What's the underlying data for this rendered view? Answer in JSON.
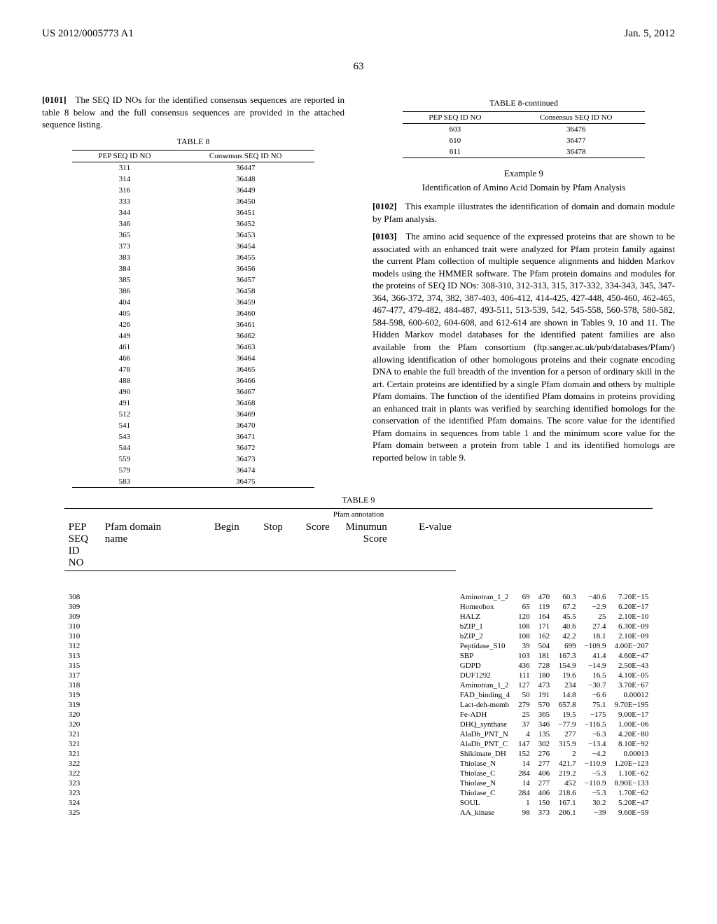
{
  "header": {
    "left": "US 2012/0005773 A1",
    "right": "Jan. 5, 2012"
  },
  "page_number": "63",
  "left_col": {
    "para_0101": {
      "label": "[0101]",
      "text": "The SEQ ID NOs for the identified consensus sequences are reported in table 8 below and the full consensus sequences are provided in the attached sequence listing."
    },
    "table8": {
      "caption": "TABLE 8",
      "headers": [
        "PEP SEQ ID NO",
        "Consensus SEQ ID NO"
      ],
      "rows": [
        [
          "311",
          "36447"
        ],
        [
          "314",
          "36448"
        ],
        [
          "316",
          "36449"
        ],
        [
          "333",
          "36450"
        ],
        [
          "344",
          "36451"
        ],
        [
          "346",
          "36452"
        ],
        [
          "365",
          "36453"
        ],
        [
          "373",
          "36454"
        ],
        [
          "383",
          "36455"
        ],
        [
          "384",
          "36456"
        ],
        [
          "385",
          "36457"
        ],
        [
          "386",
          "36458"
        ],
        [
          "404",
          "36459"
        ],
        [
          "405",
          "36460"
        ],
        [
          "426",
          "36461"
        ],
        [
          "449",
          "36462"
        ],
        [
          "461",
          "36463"
        ],
        [
          "466",
          "36464"
        ],
        [
          "478",
          "36465"
        ],
        [
          "488",
          "36466"
        ],
        [
          "490",
          "36467"
        ],
        [
          "491",
          "36468"
        ],
        [
          "512",
          "36469"
        ],
        [
          "541",
          "36470"
        ],
        [
          "543",
          "36471"
        ],
        [
          "544",
          "36472"
        ],
        [
          "559",
          "36473"
        ],
        [
          "579",
          "36474"
        ],
        [
          "583",
          "36475"
        ]
      ]
    }
  },
  "right_col": {
    "table8cont": {
      "caption": "TABLE 8-continued",
      "headers": [
        "PEP SEQ ID NO",
        "Consensus SEQ ID NO"
      ],
      "rows": [
        [
          "603",
          "36476"
        ],
        [
          "610",
          "36477"
        ],
        [
          "611",
          "36478"
        ]
      ]
    },
    "example9": {
      "heading": "Example 9",
      "sub": "Identification of Amino Acid Domain by Pfam Analysis"
    },
    "para_0102": {
      "label": "[0102]",
      "text": "This example illustrates the identification of domain and domain module by Pfam analysis."
    },
    "para_0103": {
      "label": "[0103]",
      "text": "The amino acid sequence of the expressed proteins that are shown to be associated with an enhanced trait were analyzed for Pfam protein family against the current Pfam collection of multiple sequence alignments and hidden Markov models using the HMMER software. The Pfam protein domains and modules for the proteins of SEQ ID NOs: 308-310, 312-313, 315, 317-332, 334-343, 345, 347-364, 366-372, 374, 382, 387-403, 406-412, 414-425, 427-448, 450-460, 462-465, 467-477, 479-482, 484-487, 493-511, 513-539, 542, 545-558, 560-578, 580-582, 584-598, 600-602, 604-608, and 612-614 are shown in Tables 9, 10 and 11. The Hidden Markov model databases for the identified patent families are also available from the Pfam consortium (ftp.sanger.ac.uk/pub/databases/Pfam/) allowing identification of other homologous proteins and their cognate encoding DNA to enable the full breadth of the invention for a person of ordinary skill in the art. Certain proteins are identified by a single Pfam domain and others by multiple Pfam domains. The function of the identified Pfam domains in proteins providing an enhanced trait in plants was verified by searching identified homologs for the conservation of the identified Pfam domains. The score value for the identified Pfam domains in sequences from table 1 and the minimum score value for the Pfam domain between a protein from table 1 and its identified homologs are reported below in table 9."
    }
  },
  "table9": {
    "caption": "TABLE 9",
    "section_label": "Pfam annotation",
    "headers": [
      "PEP SEQ ID NO",
      "Pfam domain name",
      "Begin",
      "Stop",
      "Score",
      "Minumun Score",
      "E-value"
    ],
    "rows": [
      [
        "308",
        "Aminotran_1_2",
        "69",
        "470",
        "60.3",
        "−40.6",
        "7.20E−15"
      ],
      [
        "309",
        "Homeobox",
        "65",
        "119",
        "67.2",
        "−2.9",
        "6.20E−17"
      ],
      [
        "309",
        "HALZ",
        "120",
        "164",
        "45.5",
        "25",
        "2.10E−10"
      ],
      [
        "310",
        "bZIP_1",
        "108",
        "171",
        "40.6",
        "27.4",
        "6.30E−09"
      ],
      [
        "310",
        "bZIP_2",
        "108",
        "162",
        "42.2",
        "18.1",
        "2.10E−09"
      ],
      [
        "312",
        "Peptidase_S10",
        "39",
        "504",
        "699",
        "−109.9",
        "4.00E−207"
      ],
      [
        "313",
        "SBP",
        "103",
        "181",
        "167.3",
        "41.4",
        "4.60E−47"
      ],
      [
        "315",
        "GDPD",
        "436",
        "728",
        "154.9",
        "−14.9",
        "2.50E−43"
      ],
      [
        "317",
        "DUF1292",
        "111",
        "180",
        "19.6",
        "16.5",
        "4.10E−05"
      ],
      [
        "318",
        "Aminotran_1_2",
        "127",
        "473",
        "234",
        "−30.7",
        "3.70E−67"
      ],
      [
        "319",
        "FAD_binding_4",
        "50",
        "191",
        "14.8",
        "−6.6",
        "0.00012"
      ],
      [
        "319",
        "Lact-deh-memb",
        "279",
        "570",
        "657.8",
        "75.1",
        "9.70E−195"
      ],
      [
        "320",
        "Fe-ADH",
        "25",
        "365",
        "19.5",
        "−175",
        "9.00E−17"
      ],
      [
        "320",
        "DHQ_synthase",
        "37",
        "346",
        "−77.9",
        "−116.5",
        "1.00E−06"
      ],
      [
        "321",
        "AlaDh_PNT_N",
        "4",
        "135",
        "277",
        "−6.3",
        "4.20E−80"
      ],
      [
        "321",
        "AlaDh_PNT_C",
        "147",
        "302",
        "315.9",
        "−13.4",
        "8.10E−92"
      ],
      [
        "321",
        "Shikimate_DH",
        "152",
        "276",
        "2",
        "−4.2",
        "0.00013"
      ],
      [
        "322",
        "Thiolase_N",
        "14",
        "277",
        "421.7",
        "−110.9",
        "1.20E−123"
      ],
      [
        "322",
        "Thiolase_C",
        "284",
        "406",
        "219.2",
        "−5.3",
        "1.10E−62"
      ],
      [
        "323",
        "Thiolase_N",
        "14",
        "277",
        "452",
        "−110.9",
        "8.90E−133"
      ],
      [
        "323",
        "Thiolase_C",
        "284",
        "406",
        "218.6",
        "−5.3",
        "1.70E−62"
      ],
      [
        "324",
        "SOUL",
        "1",
        "150",
        "167.1",
        "30.2",
        "5.20E−47"
      ],
      [
        "325",
        "AA_kinase",
        "98",
        "373",
        "206.1",
        "−39",
        "9.60E−59"
      ]
    ]
  }
}
